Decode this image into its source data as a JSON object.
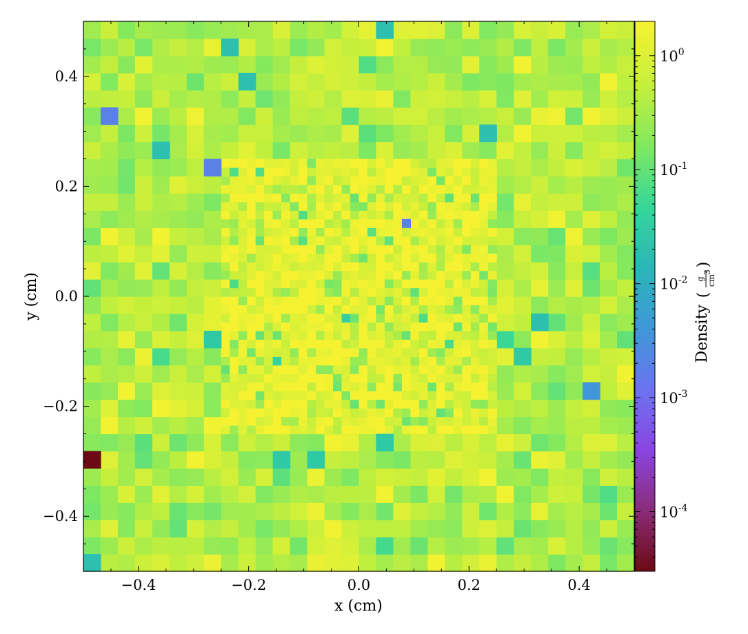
{
  "chart_data": {
    "type": "heatmap",
    "title": "",
    "xlabel": "x  (cm)",
    "ylabel": "y  (cm)",
    "xlim": [
      -0.5,
      0.5
    ],
    "ylim": [
      -0.5,
      0.5
    ],
    "x_ticks": [
      -0.4,
      -0.2,
      0.0,
      0.2,
      0.4
    ],
    "y_ticks": [
      -0.4,
      -0.2,
      0.0,
      0.2,
      0.4
    ],
    "x_tick_labels": [
      "−0.4",
      "−0.2",
      "0.0",
      "0.2",
      "0.4"
    ],
    "y_tick_labels": [
      "−0.4",
      "−0.2",
      "0.0",
      "0.2",
      "0.4"
    ],
    "colorbar": {
      "label": "Density",
      "unit_numerator": "g",
      "unit_denominator": "cm",
      "unit_denominator_exponent": "3",
      "scale": "log",
      "range": [
        3e-05,
        2.0
      ],
      "ticks": [
        {
          "value": 1,
          "base": "10",
          "exp": "0"
        },
        {
          "value": 0.1,
          "base": "10",
          "exp": "-1"
        },
        {
          "value": 0.01,
          "base": "10",
          "exp": "-2"
        },
        {
          "value": 0.001,
          "base": "10",
          "exp": "-3"
        },
        {
          "value": 0.0001,
          "base": "10",
          "exp": "-4"
        }
      ],
      "colormap": [
        "#6b0a13",
        "#8a2c78",
        "#8a45e0",
        "#6c73f0",
        "#3f97d8",
        "#2bb6b8",
        "#34d69a",
        "#7ee862",
        "#c4ef3c",
        "#f6f231"
      ]
    },
    "grid": {
      "coarse_cells": 32,
      "fine_cells": 64,
      "fine_region": [
        -0.25,
        0.25
      ],
      "coarse_log_density_mean": -0.35,
      "coarse_log_density_spread": 0.3,
      "fine_log_density_mean": 0.15,
      "fine_log_density_spread": 0.25
    },
    "notable_cells": [
      {
        "x": -0.484,
        "y": -0.297,
        "density": 3e-05
      },
      {
        "x": -0.453,
        "y": 0.328,
        "density": 0.002
      },
      {
        "x": -0.266,
        "y": 0.234,
        "density": 0.002
      },
      {
        "x": 0.422,
        "y": -0.172,
        "density": 0.004
      },
      {
        "x": 0.086,
        "y": 0.133,
        "density": 0.002
      },
      {
        "x": -0.484,
        "y": -0.484,
        "density": 0.02
      },
      {
        "x": 0.047,
        "y": 0.484,
        "density": 0.02
      },
      {
        "x": -0.359,
        "y": 0.266,
        "density": 0.02
      },
      {
        "x": 0.234,
        "y": 0.297,
        "density": 0.02
      },
      {
        "x": -0.234,
        "y": 0.453,
        "density": 0.02
      },
      {
        "x": -0.203,
        "y": 0.391,
        "density": 0.02
      },
      {
        "x": 0.328,
        "y": -0.047,
        "density": 0.02
      },
      {
        "x": 0.297,
        "y": -0.109,
        "density": 0.03
      },
      {
        "x": 0.047,
        "y": -0.266,
        "density": 0.03
      },
      {
        "x": -0.266,
        "y": -0.078,
        "density": 0.03
      },
      {
        "x": -0.078,
        "y": -0.297,
        "density": 0.03
      },
      {
        "x": -0.141,
        "y": -0.297,
        "density": 0.03
      }
    ]
  }
}
